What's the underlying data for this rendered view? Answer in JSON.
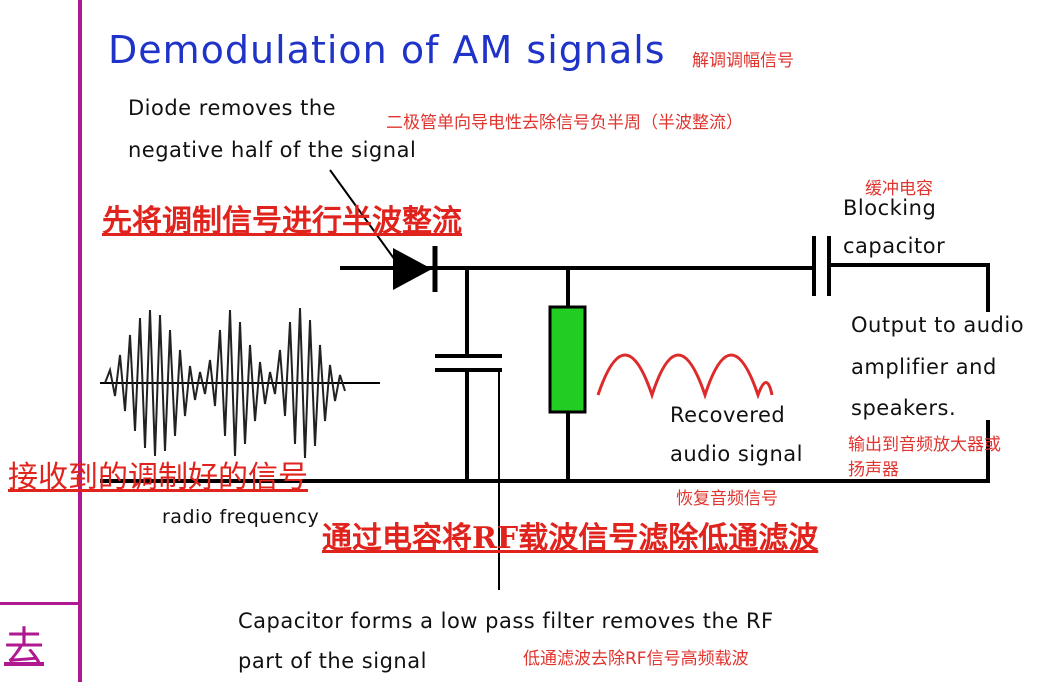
{
  "title": "Demodulation of AM signals",
  "title_cn": "解调调幅信号",
  "diode_label": [
    "Diode removes the",
    "negative half of the signal"
  ],
  "diode_cn": "二极管单向导电性去除信号负半周（半波整流）",
  "step1_cn": "先将调制信号进行半波整流",
  "blocking_cn": "缓冲电容",
  "blocking_label": [
    "Blocking",
    "capacitor"
  ],
  "output_label": [
    "Output to audio",
    "amplifier and",
    "speakers."
  ],
  "output_cn": [
    "输出到音频放大器或",
    "扬声器"
  ],
  "recovered_label": [
    "Recovered",
    "audio signal"
  ],
  "recovered_cn": "恢复音频信号",
  "received_cn": "接收到的调制好的信号",
  "rf_label": "radio frequency",
  "step2_cn": "通过电容将RF载波信号滤除低通滤波",
  "capacitor_label": [
    "Capacitor forms a low pass filter removes the RF",
    "part of the signal"
  ],
  "capacitor_cn": "低通滤波去除RF信号高频载波",
  "left_margin_char": "去",
  "colors": {
    "title": "#1f33c8",
    "annotation_red": "#e0342f",
    "resistor_green": "#22cc22",
    "audio_wave": "#dd2a2a",
    "margin_bar": "#b0188f"
  }
}
